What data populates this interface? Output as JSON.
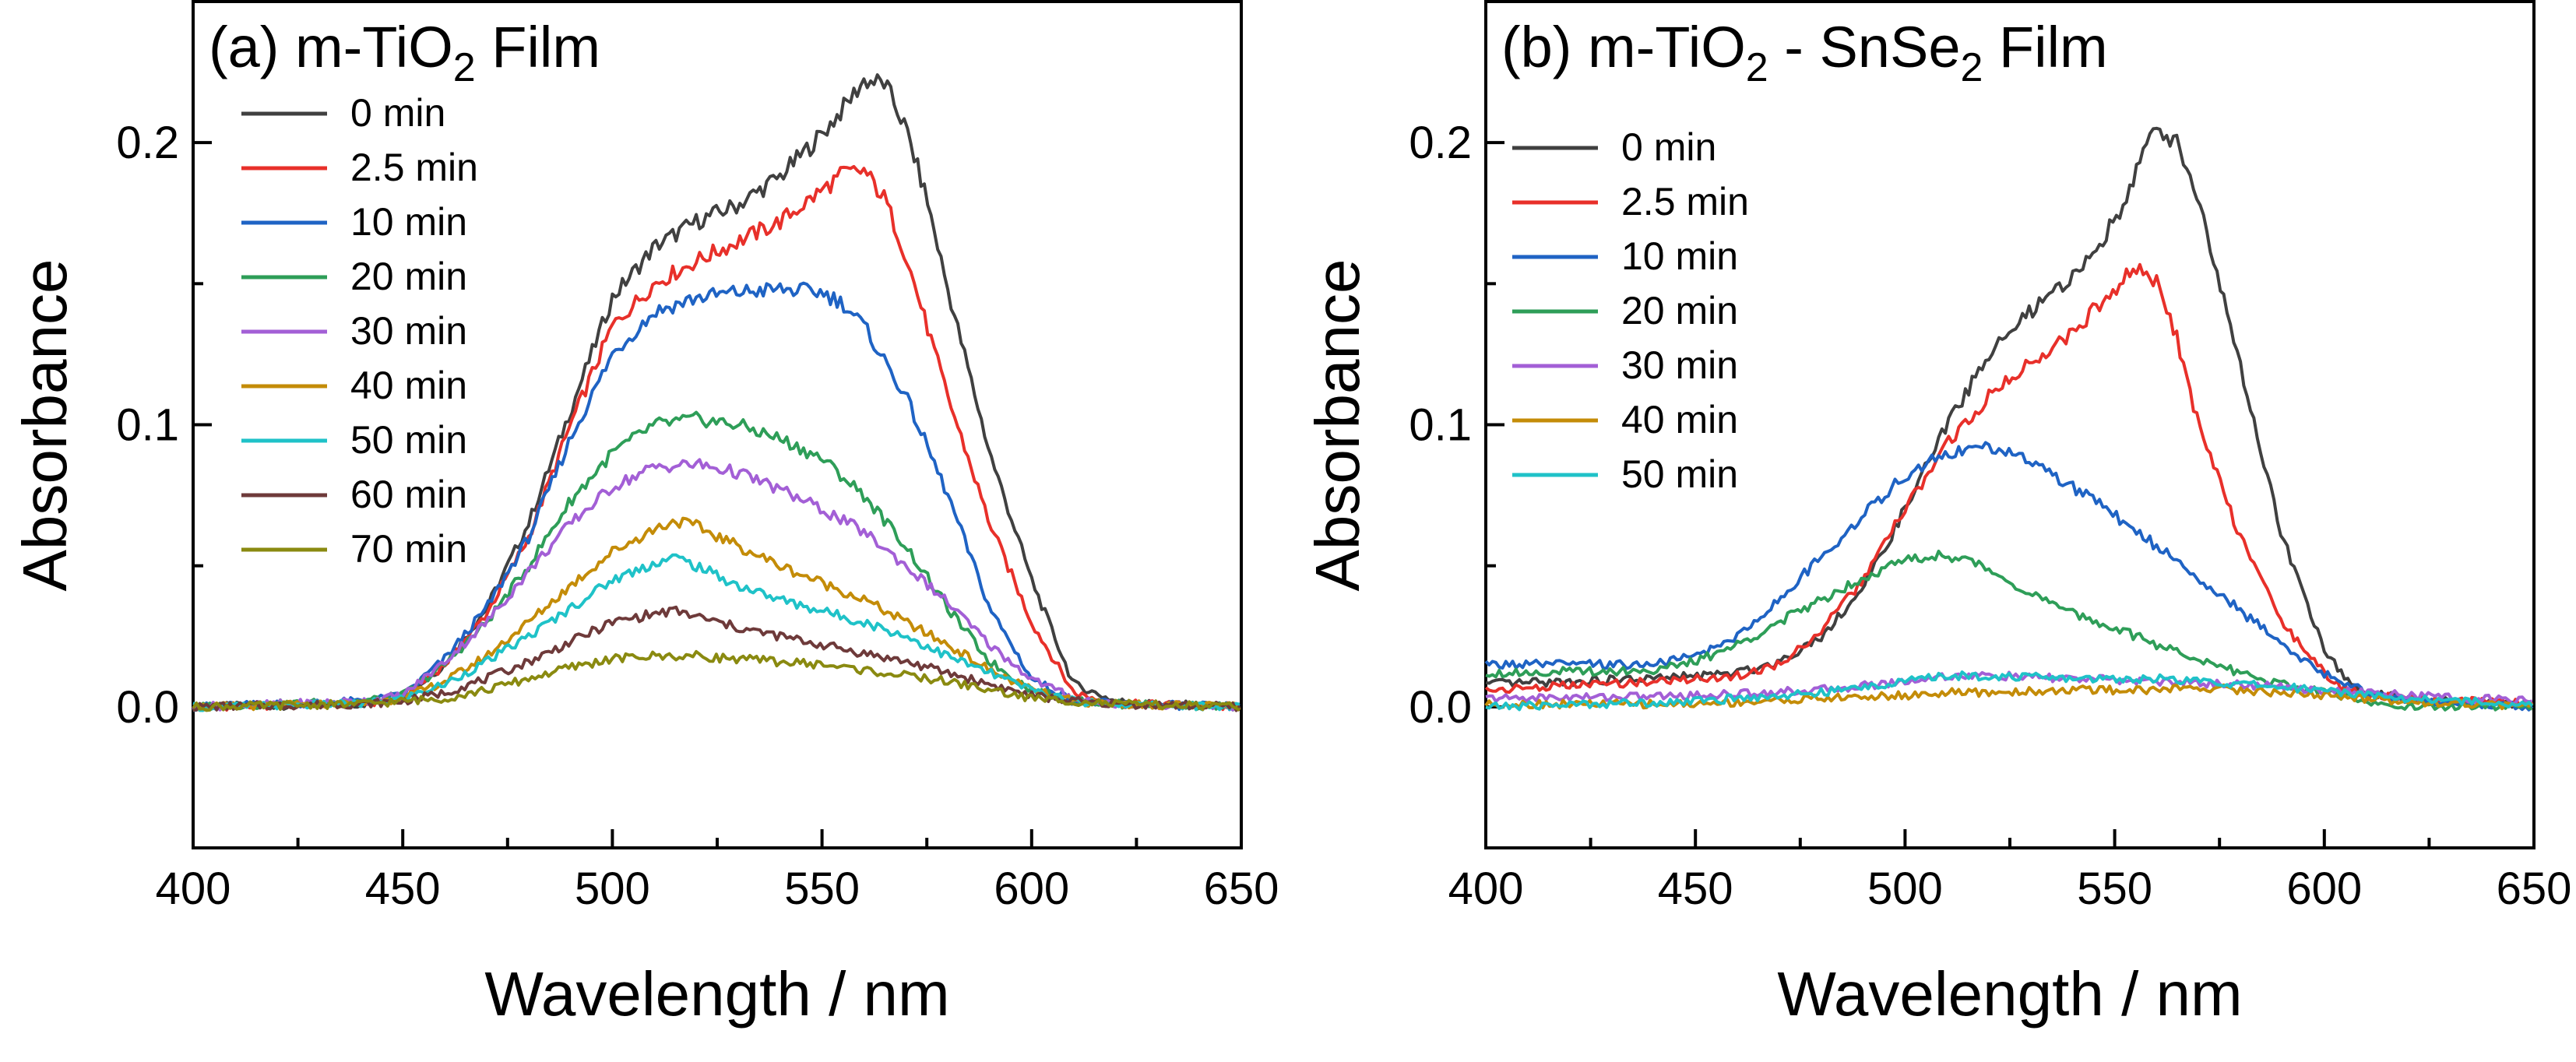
{
  "chart_data": [
    {
      "type": "line",
      "panel_label": "(a)",
      "title_main": "m-TiO",
      "title_sub": "2",
      "title_rest": " Film",
      "xlabel": "Wavelength / nm",
      "ylabel": "Absorbance",
      "xlim": [
        400,
        650
      ],
      "ylim": [
        -0.05,
        0.25
      ],
      "xticks": [
        400,
        450,
        500,
        550,
        600,
        650
      ],
      "xtick_labels": [
        "400",
        "450",
        "500",
        "550",
        "600",
        "650"
      ],
      "yticks": [
        0.0,
        0.1,
        0.2
      ],
      "ytick_labels": [
        "0.0",
        "0.1",
        "0.2"
      ],
      "legend_position": "upper-left",
      "series": [
        {
          "name": "0 min",
          "color": "#404040",
          "x": [
            400,
            440,
            450,
            460,
            470,
            480,
            490,
            500,
            510,
            520,
            530,
            540,
            550,
            555,
            560,
            565,
            570,
            575,
            580,
            590,
            600,
            610,
            620,
            630,
            650
          ],
          "y": [
            0.0,
            0.001,
            0.003,
            0.015,
            0.035,
            0.065,
            0.105,
            0.145,
            0.163,
            0.172,
            0.178,
            0.188,
            0.203,
            0.212,
            0.222,
            0.221,
            0.205,
            0.18,
            0.148,
            0.09,
            0.045,
            0.008,
            0.002,
            0.001,
            0.0
          ]
        },
        {
          "name": "2.5 min",
          "color": "#e8302a",
          "x": [
            400,
            440,
            450,
            460,
            470,
            480,
            490,
            500,
            510,
            520,
            530,
            540,
            550,
            555,
            560,
            565,
            570,
            575,
            580,
            590,
            600,
            610,
            620,
            630,
            650
          ],
          "y": [
            0.0,
            0.001,
            0.003,
            0.015,
            0.033,
            0.06,
            0.1,
            0.135,
            0.15,
            0.158,
            0.165,
            0.172,
            0.183,
            0.189,
            0.19,
            0.18,
            0.16,
            0.135,
            0.11,
            0.065,
            0.03,
            0.005,
            0.001,
            0.001,
            0.0
          ]
        },
        {
          "name": "10 min",
          "color": "#1f63c4",
          "x": [
            400,
            440,
            450,
            460,
            470,
            480,
            490,
            500,
            510,
            520,
            530,
            540,
            550,
            555,
            560,
            570,
            580,
            590,
            600,
            610,
            620,
            650
          ],
          "y": [
            0.0,
            0.002,
            0.004,
            0.017,
            0.035,
            0.06,
            0.095,
            0.125,
            0.14,
            0.145,
            0.147,
            0.148,
            0.147,
            0.143,
            0.135,
            0.11,
            0.075,
            0.035,
            0.01,
            0.002,
            0.001,
            0.0
          ]
        },
        {
          "name": "20 min",
          "color": "#2e9e58",
          "x": [
            400,
            440,
            450,
            460,
            470,
            480,
            490,
            500,
            510,
            520,
            530,
            540,
            550,
            560,
            570,
            580,
            590,
            600,
            610,
            620,
            650
          ],
          "y": [
            0.0,
            0.002,
            0.004,
            0.015,
            0.03,
            0.05,
            0.073,
            0.09,
            0.1,
            0.102,
            0.1,
            0.095,
            0.088,
            0.075,
            0.057,
            0.035,
            0.016,
            0.006,
            0.002,
            0.001,
            0.0
          ]
        },
        {
          "name": "30 min",
          "color": "#a35fd6",
          "x": [
            400,
            440,
            450,
            460,
            470,
            480,
            490,
            500,
            510,
            520,
            530,
            540,
            550,
            560,
            570,
            580,
            590,
            600,
            610,
            620,
            650
          ],
          "y": [
            0.0,
            0.002,
            0.004,
            0.016,
            0.03,
            0.048,
            0.065,
            0.078,
            0.085,
            0.086,
            0.083,
            0.077,
            0.07,
            0.062,
            0.05,
            0.037,
            0.022,
            0.01,
            0.003,
            0.001,
            0.0
          ]
        },
        {
          "name": "40 min",
          "color": "#c48c08",
          "x": [
            400,
            440,
            450,
            460,
            470,
            480,
            490,
            500,
            510,
            515,
            520,
            530,
            540,
            550,
            560,
            570,
            580,
            590,
            600,
            610,
            620,
            650
          ],
          "y": [
            0.0,
            0.001,
            0.003,
            0.009,
            0.018,
            0.03,
            0.043,
            0.055,
            0.063,
            0.066,
            0.064,
            0.057,
            0.05,
            0.044,
            0.038,
            0.03,
            0.022,
            0.013,
            0.006,
            0.002,
            0.001,
            0.0
          ]
        },
        {
          "name": "50 min",
          "color": "#1fc2c8",
          "x": [
            400,
            440,
            450,
            460,
            470,
            480,
            490,
            500,
            510,
            515,
            520,
            530,
            540,
            550,
            560,
            570,
            580,
            590,
            600,
            610,
            620,
            650
          ],
          "y": [
            0.0,
            0.001,
            0.003,
            0.008,
            0.016,
            0.025,
            0.035,
            0.045,
            0.051,
            0.053,
            0.05,
            0.043,
            0.038,
            0.034,
            0.03,
            0.025,
            0.018,
            0.012,
            0.006,
            0.002,
            0.001,
            0.0
          ]
        },
        {
          "name": "60 min",
          "color": "#6e3a3a",
          "x": [
            400,
            440,
            450,
            460,
            470,
            480,
            490,
            500,
            510,
            515,
            520,
            530,
            540,
            550,
            560,
            570,
            580,
            590,
            600,
            610,
            620,
            650
          ],
          "y": [
            0.0,
            0.001,
            0.002,
            0.005,
            0.01,
            0.016,
            0.023,
            0.03,
            0.033,
            0.034,
            0.032,
            0.028,
            0.025,
            0.022,
            0.019,
            0.016,
            0.012,
            0.008,
            0.004,
            0.002,
            0.001,
            0.0
          ]
        },
        {
          "name": "70 min",
          "color": "#8a8a10",
          "x": [
            400,
            440,
            450,
            460,
            470,
            480,
            490,
            500,
            510,
            520,
            530,
            540,
            550,
            560,
            570,
            580,
            590,
            600,
            610,
            620,
            650
          ],
          "y": [
            0.0,
            0.001,
            0.002,
            0.003,
            0.006,
            0.01,
            0.014,
            0.017,
            0.018,
            0.018,
            0.017,
            0.016,
            0.015,
            0.013,
            0.011,
            0.009,
            0.006,
            0.003,
            0.002,
            0.001,
            0.0
          ]
        }
      ]
    },
    {
      "type": "line",
      "panel_label": "(b)",
      "title_main": "m-TiO",
      "title_sub": "2",
      "title_mid": " - SnSe",
      "title_sub2": "2",
      "title_rest": " Film",
      "xlabel": "Wavelength / nm",
      "ylabel": "Absorbance",
      "xlim": [
        400,
        650
      ],
      "ylim": [
        -0.05,
        0.25
      ],
      "xticks": [
        400,
        450,
        500,
        550,
        600,
        650
      ],
      "xtick_labels": [
        "400",
        "450",
        "500",
        "550",
        "600",
        "650"
      ],
      "yticks": [
        0.0,
        0.1,
        0.2
      ],
      "ytick_labels": [
        "0.0",
        "0.1",
        "0.2"
      ],
      "legend_position": "upper-left",
      "series": [
        {
          "name": "0 min",
          "color": "#404040",
          "x": [
            400,
            440,
            460,
            470,
            480,
            490,
            500,
            510,
            520,
            530,
            540,
            550,
            555,
            560,
            565,
            570,
            575,
            580,
            590,
            600,
            605,
            610,
            620,
            630,
            650
          ],
          "y": [
            0.008,
            0.01,
            0.012,
            0.016,
            0.025,
            0.042,
            0.07,
            0.1,
            0.125,
            0.14,
            0.152,
            0.172,
            0.19,
            0.205,
            0.2,
            0.18,
            0.15,
            0.12,
            0.06,
            0.02,
            0.01,
            0.005,
            0.003,
            0.002,
            0.001
          ]
        },
        {
          "name": "2.5 min",
          "color": "#e8302a",
          "x": [
            400,
            440,
            460,
            470,
            480,
            490,
            500,
            510,
            520,
            530,
            540,
            550,
            555,
            560,
            565,
            570,
            580,
            590,
            600,
            605,
            610,
            620,
            650
          ],
          "y": [
            0.006,
            0.009,
            0.011,
            0.015,
            0.027,
            0.045,
            0.07,
            0.093,
            0.11,
            0.122,
            0.133,
            0.148,
            0.156,
            0.15,
            0.13,
            0.1,
            0.06,
            0.03,
            0.012,
            0.006,
            0.004,
            0.003,
            0.001
          ]
        },
        {
          "name": "10 min",
          "color": "#1f63c4",
          "x": [
            400,
            440,
            450,
            460,
            470,
            480,
            490,
            500,
            510,
            520,
            530,
            540,
            550,
            560,
            570,
            580,
            590,
            600,
            610,
            620,
            650
          ],
          "y": [
            0.015,
            0.015,
            0.018,
            0.025,
            0.038,
            0.053,
            0.068,
            0.082,
            0.09,
            0.092,
            0.087,
            0.078,
            0.068,
            0.057,
            0.046,
            0.034,
            0.022,
            0.012,
            0.005,
            0.002,
            0.0
          ]
        },
        {
          "name": "20 min",
          "color": "#2e9e58",
          "x": [
            400,
            440,
            450,
            460,
            470,
            480,
            490,
            500,
            510,
            520,
            530,
            540,
            550,
            560,
            570,
            580,
            590,
            600,
            610,
            620,
            650
          ],
          "y": [
            0.012,
            0.013,
            0.016,
            0.022,
            0.03,
            0.038,
            0.046,
            0.052,
            0.054,
            0.049,
            0.04,
            0.033,
            0.028,
            0.022,
            0.017,
            0.012,
            0.008,
            0.005,
            0.002,
            0.0,
            0.0
          ]
        },
        {
          "name": "30 min",
          "color": "#a35fd6",
          "x": [
            400,
            450,
            480,
            500,
            510,
            520,
            540,
            560,
            580,
            600,
            620,
            650
          ],
          "y": [
            0.003,
            0.004,
            0.006,
            0.009,
            0.011,
            0.011,
            0.01,
            0.009,
            0.008,
            0.006,
            0.004,
            0.002
          ]
        },
        {
          "name": "40 min",
          "color": "#c48c08",
          "x": [
            400,
            450,
            480,
            500,
            510,
            520,
            540,
            560,
            570,
            580,
            600,
            620,
            650
          ],
          "y": [
            0.001,
            0.001,
            0.003,
            0.004,
            0.005,
            0.005,
            0.006,
            0.006,
            0.007,
            0.006,
            0.004,
            0.002,
            0.0
          ]
        },
        {
          "name": "50 min",
          "color": "#1fc2c8",
          "x": [
            400,
            450,
            480,
            500,
            510,
            520,
            540,
            560,
            580,
            600,
            620,
            650
          ],
          "y": [
            0.0,
            0.002,
            0.005,
            0.009,
            0.011,
            0.011,
            0.01,
            0.01,
            0.008,
            0.006,
            0.003,
            0.001
          ]
        }
      ]
    }
  ]
}
